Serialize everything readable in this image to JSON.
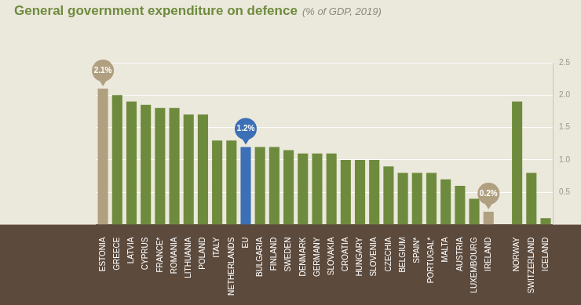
{
  "chart_data": {
    "type": "bar",
    "title": "General government expenditure on defence",
    "subtitle": "(% of GDP, 2019)",
    "categories": [
      "ESTONIA",
      "GREECE",
      "LATVIA",
      "CYPRUS",
      "FRANCE*",
      "ROMANIA",
      "LITHUANIA",
      "POLAND",
      "ITALY",
      "NETHERLANDS",
      "EU",
      "BULGARIA",
      "FINLAND",
      "SWEDEN",
      "DENMARK",
      "GERMANY",
      "SLOVAKIA",
      "CROATIA",
      "HUNGARY",
      "SLOVENIA",
      "CZECHIA",
      "BELGIUM",
      "SPAIN*",
      "PORTUGAL*",
      "MALTA",
      "AUSTRIA",
      "LUXEMBOURG",
      "IRELAND",
      null,
      "NORWAY",
      "SWITZERLAND",
      "ICELAND"
    ],
    "values": [
      2.1,
      2.0,
      1.9,
      1.85,
      1.8,
      1.8,
      1.7,
      1.7,
      1.3,
      1.3,
      1.2,
      1.2,
      1.2,
      1.15,
      1.1,
      1.1,
      1.1,
      1.0,
      1.0,
      1.0,
      0.9,
      0.8,
      0.8,
      0.8,
      0.7,
      0.6,
      0.4,
      0.2,
      null,
      1.9,
      0.8,
      0.1
    ],
    "value_labels": [
      "2.1%",
      null,
      null,
      null,
      null,
      null,
      null,
      null,
      null,
      null,
      "1.2%",
      null,
      null,
      null,
      null,
      null,
      null,
      null,
      null,
      null,
      null,
      null,
      null,
      null,
      null,
      null,
      null,
      "0.2%",
      null,
      null,
      null,
      null
    ],
    "colors": [
      "#b0a080",
      "#6e8b3d",
      "#6e8b3d",
      "#6e8b3d",
      "#6e8b3d",
      "#6e8b3d",
      "#6e8b3d",
      "#6e8b3d",
      "#6e8b3d",
      "#6e8b3d",
      "#3b6fb6",
      "#6e8b3d",
      "#6e8b3d",
      "#6e8b3d",
      "#6e8b3d",
      "#6e8b3d",
      "#6e8b3d",
      "#6e8b3d",
      "#6e8b3d",
      "#6e8b3d",
      "#6e8b3d",
      "#6e8b3d",
      "#6e8b3d",
      "#6e8b3d",
      "#6e8b3d",
      "#6e8b3d",
      "#6e8b3d",
      "#b0a080",
      null,
      "#6e8b3d",
      "#6e8b3d",
      "#6e8b3d"
    ],
    "data_labels": true,
    "ylim": [
      0,
      2.5
    ],
    "yticks": [
      0.5,
      {
        "value": 1,
        "label": "1.0"
      },
      1.5,
      {
        "value": 2,
        "label": "2.0"
      },
      2.5
    ],
    "grid": true
  }
}
